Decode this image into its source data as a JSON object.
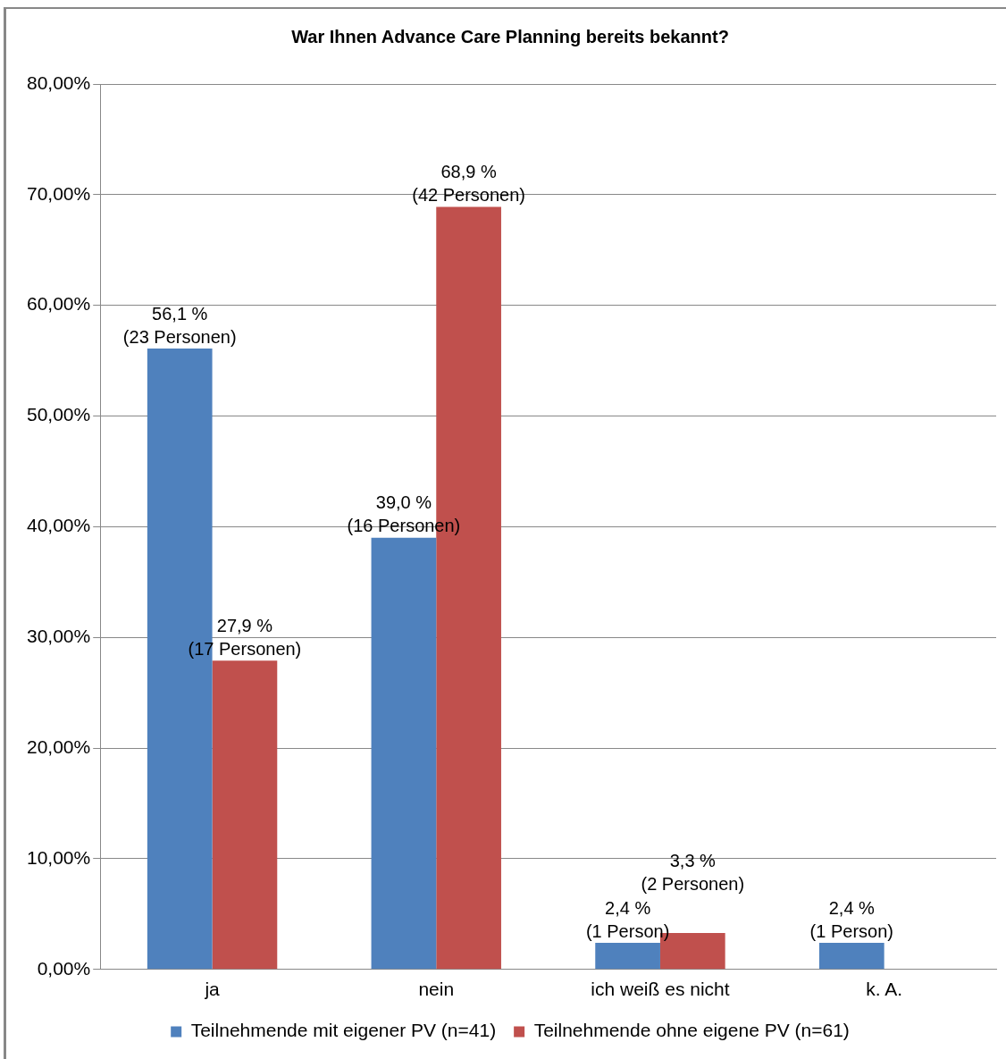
{
  "chart_data": {
    "type": "bar",
    "title": "War Ihnen Advance Care Planning bereits bekannt?",
    "categories": [
      "ja",
      "nein",
      "ich weiß es nicht",
      "k. A."
    ],
    "series": [
      {
        "name": "Teilnehmende mit eigener PV (n=41)",
        "color": "#4f81bd",
        "values": [
          56.1,
          39.0,
          2.4,
          2.4
        ],
        "value_labels": [
          "56,1 %\n(23 Personen)",
          "39,0 %\n(16 Personen)",
          "2,4 %\n(1 Person)",
          "2,4 %\n(1 Person)"
        ]
      },
      {
        "name": "Teilnehmende ohne eigene PV (n=61)",
        "color": "#c0504d",
        "values": [
          27.9,
          68.9,
          3.3,
          null
        ],
        "value_labels": [
          "27,9 %\n(17 Personen)",
          "68,9 %\n(42 Personen)",
          "3,3 %\n(2 Personen)",
          null
        ]
      }
    ],
    "ylim": [
      0,
      80
    ],
    "yticks": [
      {
        "value": 0,
        "label": "0,00%"
      },
      {
        "value": 10,
        "label": "10,00%"
      },
      {
        "value": 20,
        "label": "20,00%"
      },
      {
        "value": 30,
        "label": "30,00%"
      },
      {
        "value": 40,
        "label": "40,00%"
      },
      {
        "value": 50,
        "label": "50,00%"
      },
      {
        "value": 60,
        "label": "60,00%"
      },
      {
        "value": 70,
        "label": "70,00%"
      },
      {
        "value": 80,
        "label": "80,00%"
      }
    ],
    "grid": "y",
    "legend": "bottom"
  }
}
